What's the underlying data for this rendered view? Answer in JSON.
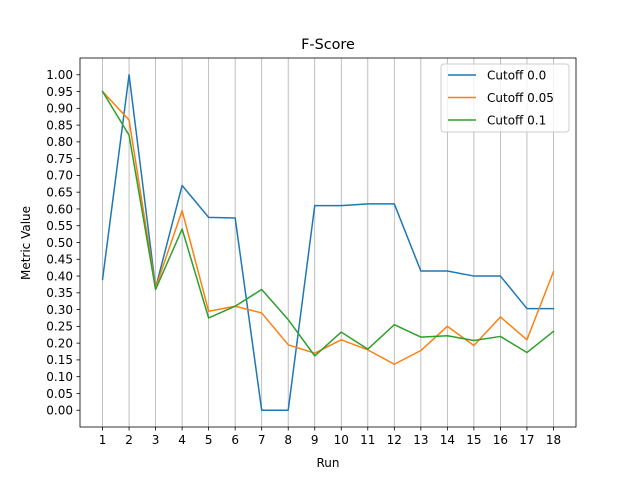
{
  "chart_data": {
    "type": "line",
    "title": "F-Score",
    "xlabel": "Run",
    "ylabel": "Metric Value",
    "x": [
      1,
      2,
      3,
      4,
      5,
      6,
      7,
      8,
      9,
      10,
      11,
      12,
      13,
      14,
      15,
      16,
      17,
      18
    ],
    "xlim": [
      0.15,
      18.85
    ],
    "ylim": [
      -0.05,
      1.05
    ],
    "yticks": [
      0.0,
      0.05,
      0.1,
      0.15,
      0.2,
      0.25,
      0.3,
      0.35,
      0.4,
      0.45,
      0.5,
      0.55,
      0.6,
      0.65,
      0.7,
      0.75,
      0.8,
      0.85,
      0.9,
      0.95,
      1.0
    ],
    "grid": "vertical",
    "legend_position": "top-right",
    "series": [
      {
        "name": "Cutoff 0.0",
        "color": "#1f77b4",
        "values": [
          0.39,
          1.0,
          0.365,
          0.67,
          0.575,
          0.573,
          0.0,
          0.0,
          0.61,
          0.61,
          0.615,
          0.615,
          0.415,
          0.415,
          0.4,
          0.4,
          0.303,
          0.303
        ]
      },
      {
        "name": "Cutoff 0.05",
        "color": "#ff7f0e",
        "values": [
          0.95,
          0.865,
          0.365,
          0.595,
          0.295,
          0.31,
          0.29,
          0.195,
          0.17,
          0.21,
          0.18,
          0.137,
          0.178,
          0.25,
          0.193,
          0.278,
          0.21,
          0.413
        ]
      },
      {
        "name": "Cutoff 0.1",
        "color": "#2ca02c",
        "values": [
          0.95,
          0.82,
          0.36,
          0.54,
          0.275,
          0.31,
          0.36,
          0.27,
          0.162,
          0.233,
          0.182,
          0.255,
          0.218,
          0.222,
          0.208,
          0.22,
          0.172,
          0.235
        ]
      }
    ]
  }
}
